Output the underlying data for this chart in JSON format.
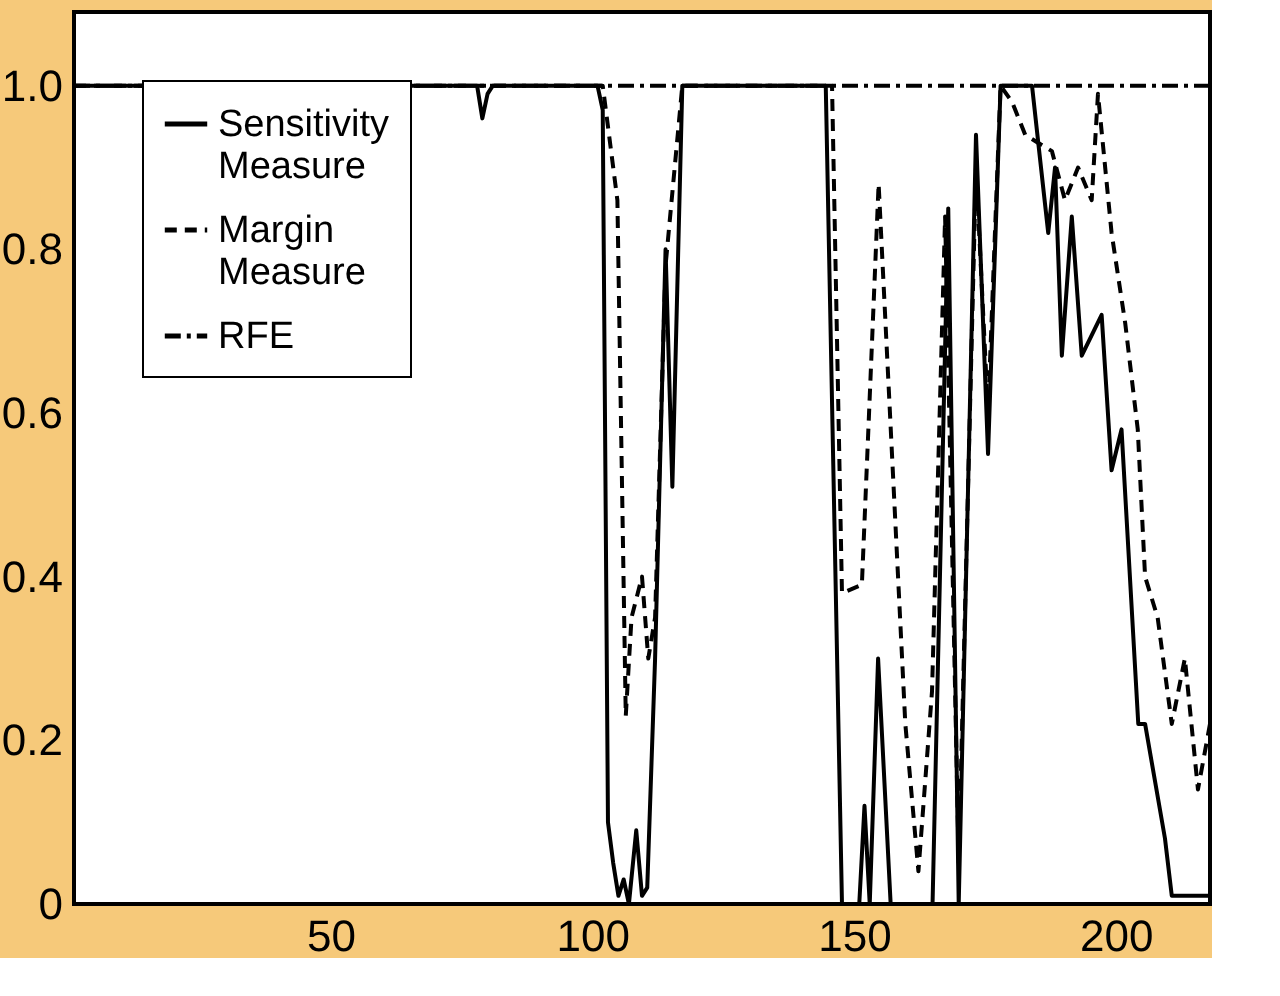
{
  "chart_data": {
    "type": "line",
    "xlim": [
      1,
      218
    ],
    "ylim": [
      0,
      1.09
    ],
    "xticks": [
      50,
      100,
      150,
      200
    ],
    "yticks": [
      {
        "value": 0,
        "label": "0"
      },
      {
        "value": 0.2,
        "label": "0.2"
      },
      {
        "value": 0.4,
        "label": "0.4"
      },
      {
        "value": 0.6,
        "label": "0.6"
      },
      {
        "value": 0.8,
        "label": "0.8"
      },
      {
        "value": 1.0,
        "label": "1.0"
      }
    ],
    "grid": false,
    "legend": "top left",
    "marker": "none",
    "series": [
      {
        "name": "Sensitivity Measure",
        "color": "#000000",
        "line_style": "solid",
        "x": [
          1,
          78,
          79,
          80,
          81,
          101,
          102,
          103,
          104,
          105,
          106,
          107,
          108.4,
          109.5,
          110.5,
          112,
          114,
          115.3,
          117.2,
          144.6,
          147.7,
          151,
          152,
          153,
          154.6,
          157,
          165,
          168,
          170,
          173.3,
          175.6,
          178,
          184,
          185.2,
          187.1,
          188.4,
          189.7,
          191.6,
          193.5,
          197.3,
          199.2,
          201.1,
          204.3,
          205.6,
          209.4,
          210.7,
          218
        ],
        "values": [
          1.0,
          1.0,
          0.96,
          0.99,
          1.0,
          1.0,
          0.97,
          0.1,
          0.05,
          0.01,
          0.03,
          0.0,
          0.09,
          0.01,
          0.02,
          0.3,
          0.8,
          0.51,
          1.0,
          1.0,
          0.0,
          0.0,
          0.12,
          0.0,
          0.3,
          0.0,
          0.0,
          0.85,
          0.0,
          0.94,
          0.55,
          1.0,
          1.0,
          0.93,
          0.82,
          0.9,
          0.67,
          0.84,
          0.67,
          0.72,
          0.53,
          0.58,
          0.22,
          0.22,
          0.08,
          0.01,
          0.01
        ]
      },
      {
        "name": "Margin Measure",
        "color": "#000000",
        "line_style": "dashed",
        "x": [
          1,
          102,
          104.8,
          106.4,
          107.5,
          109.5,
          110.7,
          112,
          114,
          117.2,
          145.8,
          147.7,
          151.5,
          154.7,
          159.8,
          162.3,
          164.9,
          167.4,
          170,
          173.3,
          175.6,
          178,
          180.2,
          182.7,
          185.2,
          187.8,
          190.3,
          192.8,
          195.4,
          196.6,
          199.2,
          201.8,
          204.2,
          205.6,
          208,
          210.7,
          213.2,
          215.7,
          218
        ],
        "values": [
          1.0,
          1.0,
          0.86,
          0.23,
          0.35,
          0.4,
          0.3,
          0.35,
          0.78,
          1.0,
          1.0,
          0.38,
          0.39,
          0.88,
          0.22,
          0.04,
          0.26,
          0.84,
          0.05,
          0.9,
          0.6,
          1.0,
          0.98,
          0.94,
          0.93,
          0.92,
          0.86,
          0.9,
          0.86,
          0.99,
          0.82,
          0.71,
          0.58,
          0.4,
          0.35,
          0.22,
          0.3,
          0.14,
          0.22
        ]
      },
      {
        "name": "RFE",
        "color": "#000000",
        "line_style": "dashdot",
        "x": [
          1,
          218
        ],
        "values": [
          1.0,
          1.0
        ]
      }
    ]
  }
}
